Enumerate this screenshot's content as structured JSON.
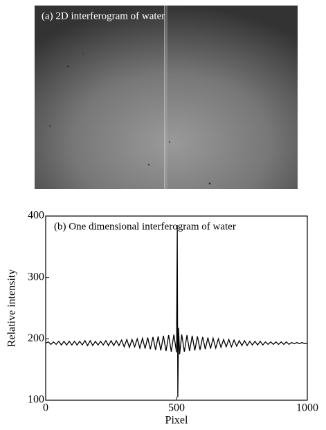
{
  "image_panel": {
    "title": "(a) 2D interferogram of water"
  },
  "chart_data": {
    "type": "line",
    "title": "(b) One dimensional interferogram of water",
    "x_label": "Pixel",
    "y_label": "Relative intensity",
    "xlim": [
      0,
      1000
    ],
    "xticks": [
      0,
      500,
      1000
    ],
    "ylim": [
      100,
      400
    ],
    "yticks": [
      100,
      200,
      300,
      400
    ],
    "color": "#000000",
    "x": [
      0,
      10,
      20,
      30,
      40,
      50,
      60,
      70,
      80,
      90,
      100,
      110,
      120,
      130,
      140,
      150,
      160,
      170,
      180,
      190,
      200,
      210,
      220,
      230,
      240,
      250,
      260,
      270,
      280,
      290,
      300,
      310,
      320,
      330,
      340,
      350,
      360,
      370,
      380,
      390,
      400,
      410,
      420,
      430,
      440,
      450,
      460,
      470,
      480,
      490,
      500,
      503,
      505,
      508,
      512,
      520,
      530,
      540,
      550,
      560,
      570,
      580,
      590,
      600,
      610,
      620,
      630,
      640,
      650,
      660,
      670,
      680,
      690,
      700,
      710,
      720,
      730,
      740,
      750,
      760,
      770,
      780,
      790,
      800,
      810,
      820,
      830,
      840,
      850,
      860,
      870,
      880,
      890,
      900,
      910,
      920,
      930,
      940,
      950,
      960,
      970,
      980,
      990,
      1000
    ],
    "values": [
      193,
      195,
      191,
      195,
      191,
      196,
      190,
      196,
      190,
      196,
      190,
      196,
      190,
      196,
      190,
      197,
      189,
      197,
      189,
      196,
      190,
      196,
      190,
      197,
      189,
      197,
      189,
      197,
      189,
      198,
      187,
      199,
      186,
      199,
      187,
      200,
      185,
      201,
      184,
      202,
      183,
      203,
      182,
      204,
      181,
      205,
      180,
      206,
      179,
      207,
      178,
      385,
      105,
      218,
      175,
      207,
      179,
      206,
      180,
      205,
      181,
      204,
      182,
      203,
      183,
      202,
      184,
      201,
      185,
      200,
      186,
      199,
      187,
      199,
      187,
      198,
      188,
      197,
      189,
      197,
      189,
      196,
      190,
      196,
      190,
      196,
      190,
      195,
      191,
      195,
      191,
      195,
      191,
      195,
      191,
      195,
      191,
      194,
      192,
      194,
      192,
      194,
      192,
      193
    ]
  }
}
